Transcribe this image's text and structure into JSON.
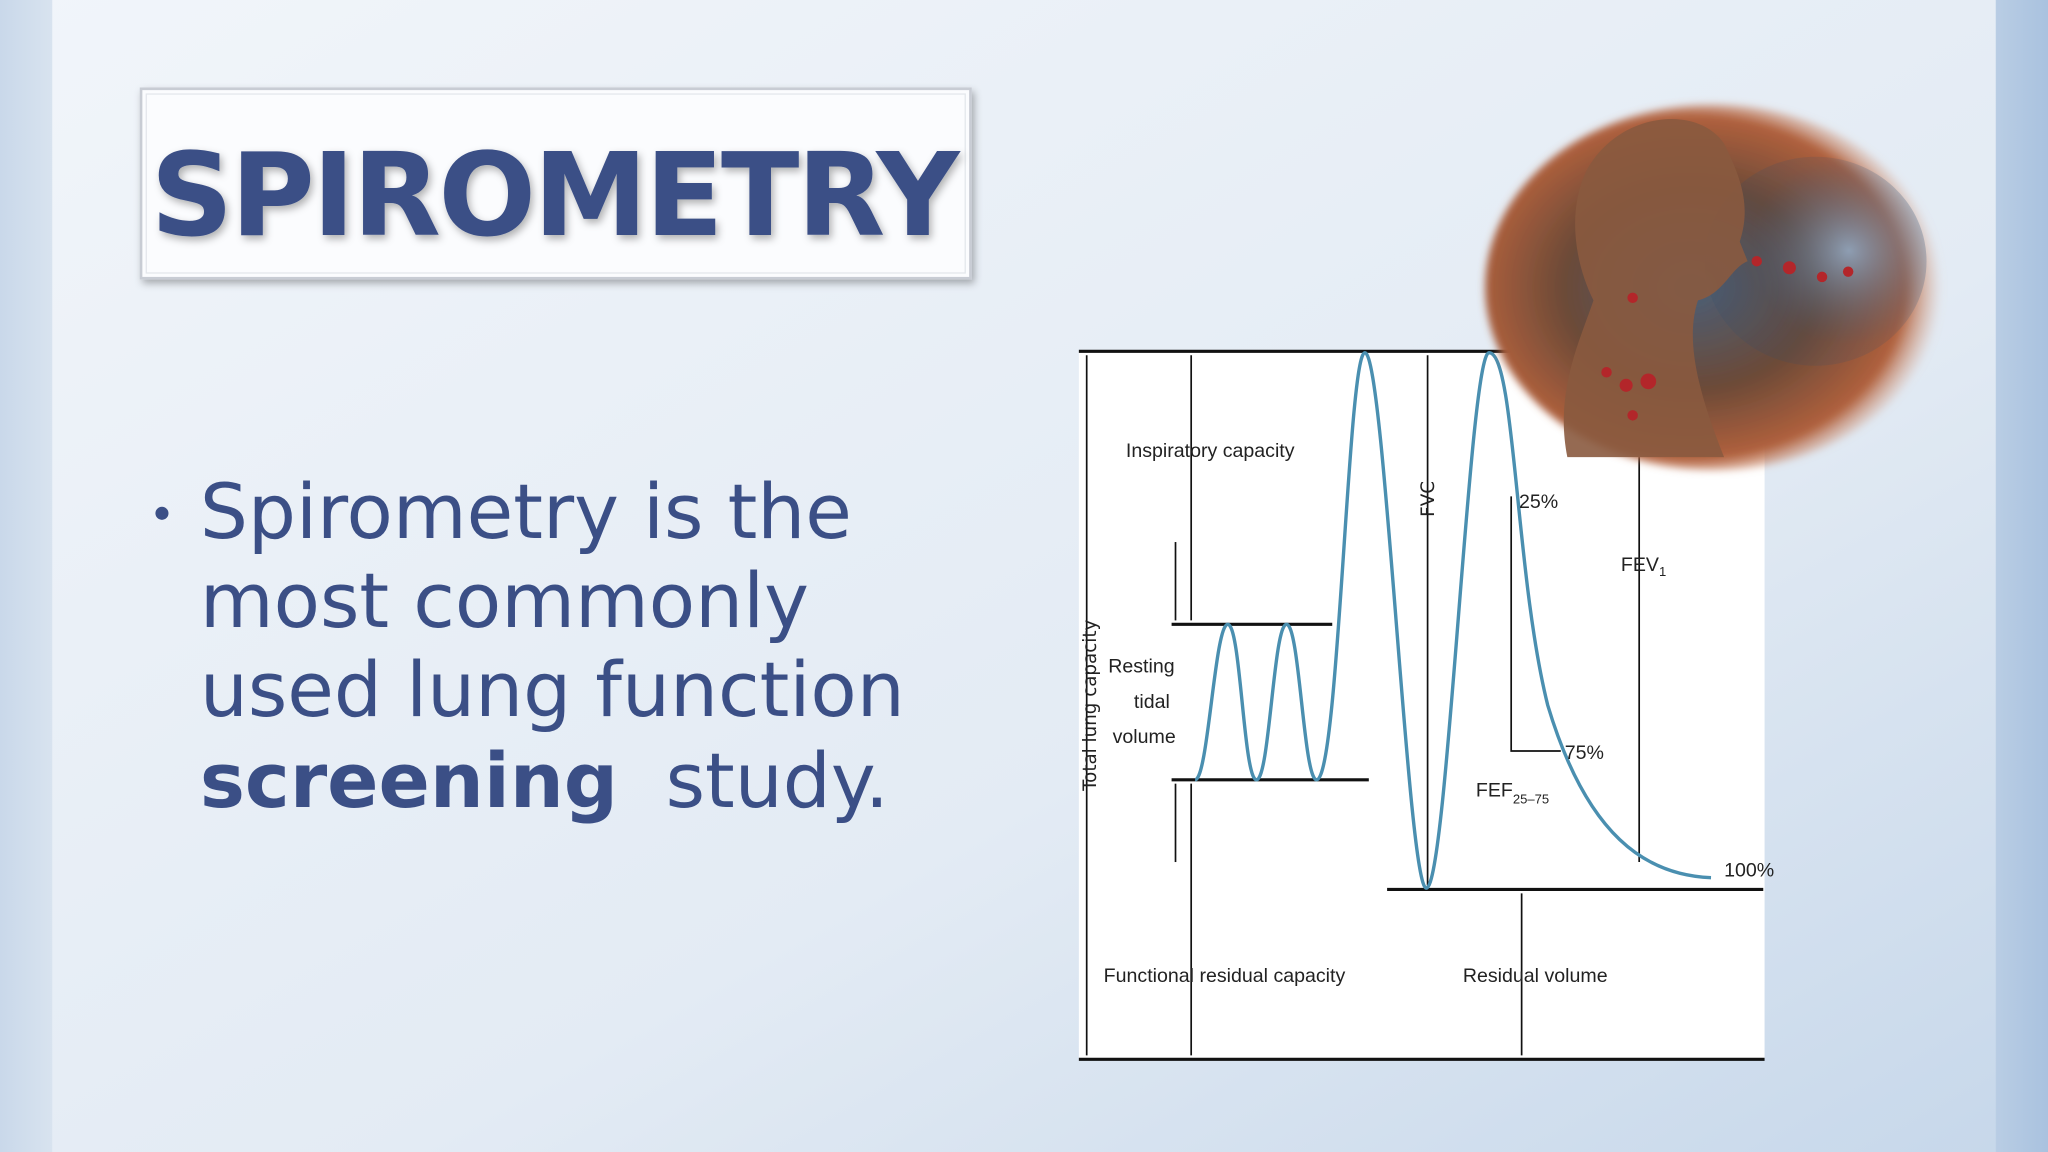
{
  "title": "SPIROMETRY",
  "bullet": {
    "lines": [
      "Spirometry is the",
      "most commonly",
      "used lung function"
    ],
    "emphasis": "screening",
    "rest": "study."
  },
  "diagram": {
    "inspiratory_capacity": "Inspiratory capacity",
    "resting_tidal_volume": [
      "Resting",
      "tidal",
      "volume"
    ],
    "total_lung_capacity": "Total lung capacity",
    "fvc": "FVC",
    "p25": "25%",
    "fev": {
      "text": "FEV",
      "sub": "1"
    },
    "p75": "75%",
    "fef": {
      "text": "FEF",
      "sub": "25–75"
    },
    "p100": "100%",
    "functional_residual_capacity": "Functional residual capacity",
    "residual_volume": "Residual volume"
  }
}
